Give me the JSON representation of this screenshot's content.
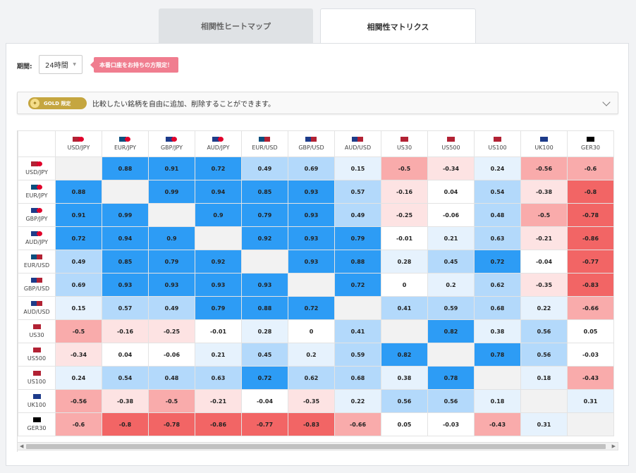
{
  "tabs": [
    {
      "label": "相関性ヒートマップ",
      "active": false
    },
    {
      "label": "相関性マトリクス",
      "active": true
    }
  ],
  "period": {
    "label": "期間:",
    "value": "24時間"
  },
  "promo": "本番口座をお持ちの方限定！",
  "gold": {
    "badge": "GOLD 限定",
    "text": "比較したい銘柄を自由に追加、削除することができます。"
  },
  "symbols": [
    "USD/JPY",
    "EUR/JPY",
    "GBP/JPY",
    "AUD/JPY",
    "EUR/USD",
    "GBP/USD",
    "AUD/USD",
    "US30",
    "US500",
    "US100",
    "UK100",
    "GER30"
  ],
  "flags": [
    [
      "#b22234",
      "#e0002a"
    ],
    [
      "#0b4f7e",
      "#e0002a"
    ],
    [
      "#1d3b8a",
      "#e0002a"
    ],
    [
      "#1f3d8a",
      "#e0002a"
    ],
    [
      "#0b4f7e",
      "#b22234"
    ],
    [
      "#1d3b8a",
      "#b22234"
    ],
    [
      "#1f3d8a",
      "#b22234"
    ],
    [
      "#b22234"
    ],
    [
      "#b22234"
    ],
    [
      "#b22234"
    ],
    [
      "#1d3b8a"
    ],
    [
      "#000000"
    ]
  ],
  "matrix": [
    [
      null,
      0.88,
      0.91,
      0.72,
      0.49,
      0.69,
      0.15,
      -0.5,
      -0.34,
      0.24,
      -0.56,
      -0.6
    ],
    [
      0.88,
      null,
      0.99,
      0.94,
      0.85,
      0.93,
      0.57,
      -0.16,
      0.04,
      0.54,
      -0.38,
      -0.8
    ],
    [
      0.91,
      0.99,
      null,
      0.9,
      0.79,
      0.93,
      0.49,
      -0.25,
      -0.06,
      0.48,
      -0.5,
      -0.78
    ],
    [
      0.72,
      0.94,
      0.9,
      null,
      0.92,
      0.93,
      0.79,
      -0.01,
      0.21,
      0.63,
      -0.21,
      -0.86
    ],
    [
      0.49,
      0.85,
      0.79,
      0.92,
      null,
      0.93,
      0.88,
      0.28,
      0.45,
      0.72,
      -0.04,
      -0.77
    ],
    [
      0.69,
      0.93,
      0.93,
      0.93,
      0.93,
      null,
      0.72,
      0,
      0.2,
      0.62,
      -0.35,
      -0.83
    ],
    [
      0.15,
      0.57,
      0.49,
      0.79,
      0.88,
      0.72,
      null,
      0.41,
      0.59,
      0.68,
      0.22,
      -0.66
    ],
    [
      -0.5,
      -0.16,
      -0.25,
      -0.01,
      0.28,
      0,
      0.41,
      null,
      0.82,
      0.38,
      0.56,
      0.05
    ],
    [
      -0.34,
      0.04,
      -0.06,
      0.21,
      0.45,
      0.2,
      0.59,
      0.82,
      null,
      0.78,
      0.56,
      -0.03
    ],
    [
      0.24,
      0.54,
      0.48,
      0.63,
      0.72,
      0.62,
      0.68,
      0.38,
      0.78,
      null,
      0.18,
      -0.43
    ],
    [
      -0.56,
      -0.38,
      -0.5,
      -0.21,
      -0.04,
      -0.35,
      0.22,
      0.56,
      0.56,
      0.18,
      null,
      0.31
    ],
    [
      -0.6,
      -0.8,
      -0.78,
      -0.86,
      -0.77,
      -0.83,
      -0.66,
      0.05,
      -0.03,
      -0.43,
      0.31,
      null
    ]
  ],
  "colors": {
    "strong_pos": "#2d9cf5",
    "mid_pos": "#b3d9fb",
    "weak_pos": "#e6f2fd",
    "neutral": "#ffffff",
    "weak_neg": "#fde3e3",
    "mid_neg": "#f9abab",
    "strong_neg": "#f26565",
    "diagonal": "#f2f2f2"
  }
}
